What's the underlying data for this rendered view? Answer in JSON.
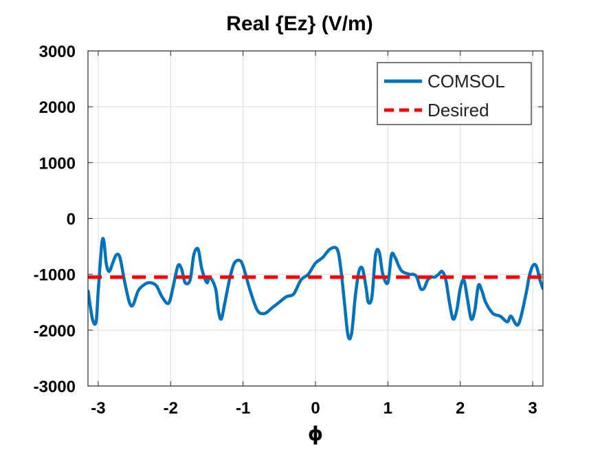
{
  "chart_data": {
    "type": "line",
    "title": "Real {Ez} (V/m)",
    "xlabel": "ϕ",
    "ylabel": "",
    "xlim": [
      -3.1416,
      3.1416
    ],
    "ylim": [
      -3000,
      3000
    ],
    "xticks": [
      -3,
      -2,
      -1,
      0,
      1,
      2,
      3
    ],
    "xtick_labels": [
      "-3",
      "-2",
      "-1",
      "0",
      "1",
      "2",
      "3"
    ],
    "yticks": [
      3000,
      2000,
      1000,
      0,
      -1000,
      -2000,
      -3000
    ],
    "ytick_labels": [
      "3000",
      "2000",
      "1000",
      "0",
      "-1000",
      "-2000",
      "-3000"
    ],
    "grid": true,
    "legend_position": "top-right",
    "series": [
      {
        "name": "COMSOL",
        "color": "#0072BD",
        "style": "solid",
        "x": [
          -3.14,
          -3.08,
          -3.03,
          -3.0,
          -2.95,
          -2.92,
          -2.89,
          -2.85,
          -2.8,
          -2.75,
          -2.7,
          -2.64,
          -2.57,
          -2.52,
          -2.45,
          -2.38,
          -2.3,
          -2.2,
          -2.12,
          -2.03,
          -1.97,
          -1.9,
          -1.85,
          -1.8,
          -1.73,
          -1.68,
          -1.62,
          -1.57,
          -1.5,
          -1.46,
          -1.38,
          -1.34,
          -1.3,
          -1.25,
          -1.18,
          -1.12,
          -1.05,
          -1.0,
          -0.9,
          -0.8,
          -0.7,
          -0.6,
          -0.5,
          -0.4,
          -0.3,
          -0.2,
          -0.1,
          0.0,
          0.1,
          0.2,
          0.3,
          0.35,
          0.4,
          0.45,
          0.5,
          0.55,
          0.6,
          0.65,
          0.7,
          0.73,
          0.78,
          0.83,
          0.88,
          0.93,
          1.0,
          1.05,
          1.1,
          1.15,
          1.2,
          1.3,
          1.35,
          1.4,
          1.45,
          1.5,
          1.55,
          1.6,
          1.65,
          1.7,
          1.75,
          1.8,
          1.85,
          1.9,
          1.95,
          2.0,
          2.05,
          2.1,
          2.15,
          2.2,
          2.25,
          2.3,
          2.35,
          2.45,
          2.55,
          2.65,
          2.7,
          2.8,
          2.9,
          2.95,
          3.0,
          3.05,
          3.1,
          3.14
        ],
        "y": [
          -1300,
          -1800,
          -1850,
          -1300,
          -450,
          -420,
          -800,
          -950,
          -800,
          -650,
          -700,
          -1100,
          -1500,
          -1550,
          -1300,
          -1200,
          -1150,
          -1200,
          -1400,
          -1520,
          -1250,
          -850,
          -900,
          -1150,
          -1100,
          -650,
          -550,
          -900,
          -1150,
          -1050,
          -1250,
          -1650,
          -1800,
          -1500,
          -1050,
          -800,
          -750,
          -850,
          -1300,
          -1650,
          -1700,
          -1600,
          -1500,
          -1400,
          -1350,
          -1100,
          -1000,
          -800,
          -700,
          -550,
          -550,
          -900,
          -1500,
          -2100,
          -2050,
          -1400,
          -950,
          -900,
          -1250,
          -1500,
          -1400,
          -650,
          -600,
          -1000,
          -1150,
          -650,
          -700,
          -850,
          -950,
          -1000,
          -1000,
          -1050,
          -1250,
          -1250,
          -1100,
          -1050,
          -1050,
          -1000,
          -950,
          -1100,
          -1500,
          -1800,
          -1650,
          -1250,
          -1100,
          -1450,
          -1800,
          -1650,
          -1200,
          -1300,
          -1500,
          -1700,
          -1750,
          -1850,
          -1750,
          -1900,
          -1400,
          -1050,
          -850,
          -850,
          -1100,
          -1250
        ]
      },
      {
        "name": "Desired",
        "color": "#FF0000",
        "style": "dashed",
        "x": [
          -3.14,
          3.14
        ],
        "y": [
          -1050,
          -1050
        ]
      }
    ]
  }
}
